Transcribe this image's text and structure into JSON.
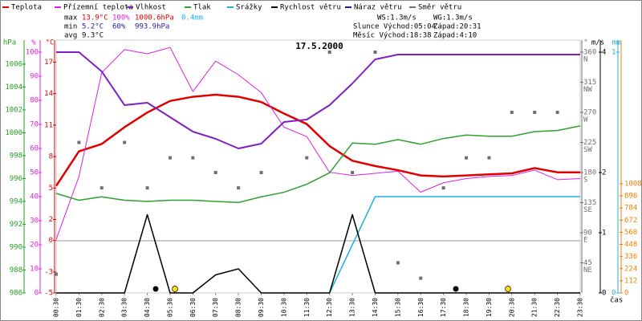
{
  "chart_data": {
    "type": "line",
    "title": "17.5.2000",
    "xlabel": "čas",
    "categories": [
      "00:30",
      "01:30",
      "02:30",
      "03:30",
      "04:30",
      "05:30",
      "06:30",
      "07:30",
      "08:30",
      "09:30",
      "10:30",
      "11:30",
      "12:30",
      "13:30",
      "14:30",
      "15:30",
      "16:30",
      "17:30",
      "18:30",
      "19:30",
      "20:30",
      "21:30",
      "22:30",
      "23:30"
    ],
    "axes": {
      "hpa": {
        "label": "hPa",
        "color": "#20a020",
        "ylim": [
          986,
          1008.1
        ],
        "yticks": [
          986,
          988,
          990,
          992,
          994,
          996,
          998,
          1000,
          1002,
          1004,
          1006
        ]
      },
      "pct": {
        "label": "%",
        "color": "#e020e0",
        "ylim": [
          0,
          105
        ],
        "yticks": [
          0,
          10,
          20,
          30,
          40,
          50,
          60,
          70,
          80,
          90,
          100
        ]
      },
      "temp": {
        "label": "°C",
        "color": "#e00000",
        "ylim": [
          -5,
          19.1
        ],
        "yticks": [
          -5,
          -3,
          0,
          2,
          5,
          8,
          11,
          14,
          17
        ]
      },
      "dir": {
        "label": "°",
        "color": "#707070",
        "ylim": [
          0,
          378
        ],
        "yticks": [
          45,
          90,
          135,
          180,
          225,
          270,
          315,
          360
        ],
        "compass": [
          "NE",
          "E",
          "SE",
          "S",
          "SW",
          "W",
          "NW",
          "N"
        ]
      },
      "ms": {
        "label": "m/s",
        "color": "#000000",
        "ylim": [
          0,
          4.2
        ],
        "yticks": [
          0,
          1,
          2,
          4
        ]
      },
      "mm": {
        "label": "mm",
        "color": "#20b0e0",
        "ylim": [
          0,
          1.05
        ],
        "yticks": [
          0,
          1
        ]
      },
      "wm2": {
        "color": "#f08000",
        "ylim": [
          0,
          2334
        ],
        "yticks": [
          0,
          112,
          224,
          336,
          448,
          560,
          672,
          784,
          896,
          1008
        ]
      }
    },
    "series": [
      {
        "name": "Teplota",
        "color": "#e00000",
        "axis": "temp",
        "width": 2.5,
        "values": [
          5.2,
          8.5,
          9.2,
          10.8,
          12.2,
          13.3,
          13.7,
          13.9,
          13.7,
          13.2,
          12.1,
          11.1,
          9.0,
          7.6,
          7.1,
          6.7,
          6.2,
          6.1,
          6.2,
          6.3,
          6.4,
          6.9,
          6.5,
          6.5
        ]
      },
      {
        "name": "Přízemní teplota",
        "color": "#e020e0",
        "axis": "temp",
        "width": 1,
        "values": [
          0.1,
          6.1,
          16.0,
          18.2,
          17.8,
          18.4,
          14.2,
          17.1,
          15.8,
          14.1,
          10.8,
          9.9,
          6.5,
          6.2,
          6.4,
          6.6,
          4.6,
          5.5,
          5.9,
          6.1,
          6.2,
          6.7,
          5.8,
          5.9
        ]
      },
      {
        "name": "Vlhkost",
        "color": "#8020c0",
        "axis": "pct",
        "width": 2,
        "values": [
          100,
          100,
          92,
          78,
          79,
          73,
          67,
          64,
          60,
          62,
          71,
          72,
          78,
          87,
          97,
          99,
          99,
          99,
          99,
          99,
          99,
          99,
          99,
          99
        ]
      },
      {
        "name": "Tlak",
        "color": "#30a030",
        "axis": "hpa",
        "width": 1.5,
        "values": [
          994.7,
          994.1,
          994.4,
          994.1,
          994.0,
          994.1,
          994.1,
          994.0,
          993.9,
          994.4,
          994.8,
          995.5,
          996.5,
          999.1,
          999.0,
          999.4,
          999.0,
          999.5,
          999.8,
          999.7,
          999.7,
          1000.1,
          1000.2,
          1000.6
        ]
      },
      {
        "name": "Srážky",
        "color": "#20b0e0",
        "axis": "mm",
        "width": 1.5,
        "values": [
          null,
          null,
          null,
          null,
          null,
          null,
          null,
          null,
          null,
          null,
          null,
          null,
          0,
          0.2,
          0.4,
          0.4,
          0.4,
          0.4,
          0.4,
          0.4,
          0.4,
          0.4,
          0.4,
          0.4
        ]
      },
      {
        "name": "Rychlost větru",
        "color": "#000000",
        "axis": "ms",
        "width": 1.5,
        "values": [
          0,
          0,
          0,
          0,
          1.3,
          0,
          0,
          0.3,
          0.4,
          0,
          0,
          0,
          0,
          1.3,
          0,
          0,
          0,
          0,
          0,
          0,
          0,
          0,
          0,
          0
        ]
      },
      {
        "name": "Náraz větru",
        "color": "#202090"
      },
      {
        "name": "Směr větru",
        "color": "#707070",
        "axis": "dir",
        "points": true,
        "values": [
          28,
          225,
          157,
          225,
          157,
          202,
          202,
          180,
          157,
          180,
          null,
          202,
          360,
          180,
          360,
          45,
          22,
          157,
          202,
          202,
          270,
          270,
          270,
          null
        ]
      }
    ],
    "stats": {
      "max": {
        "label": "max",
        "temp": "13.9°C",
        "hum": "100%",
        "press": "1000.6hPa",
        "rain": "0.4mm"
      },
      "min": {
        "label": "min",
        "temp": "5.2°C",
        "hum": "60%",
        "press": "993.9hPa"
      },
      "avg": {
        "label": "avg",
        "temp": "9.3°C"
      }
    },
    "info": {
      "ws": "WS:1.3m/s",
      "wg": "WG:1.3m/s",
      "sun_rise": "Slunce Východ:05:04",
      "sun_set": "Západ:20:31",
      "moon_rise": "Měsíc Východ:18:38",
      "moon_set": "Západ:4:10"
    }
  }
}
